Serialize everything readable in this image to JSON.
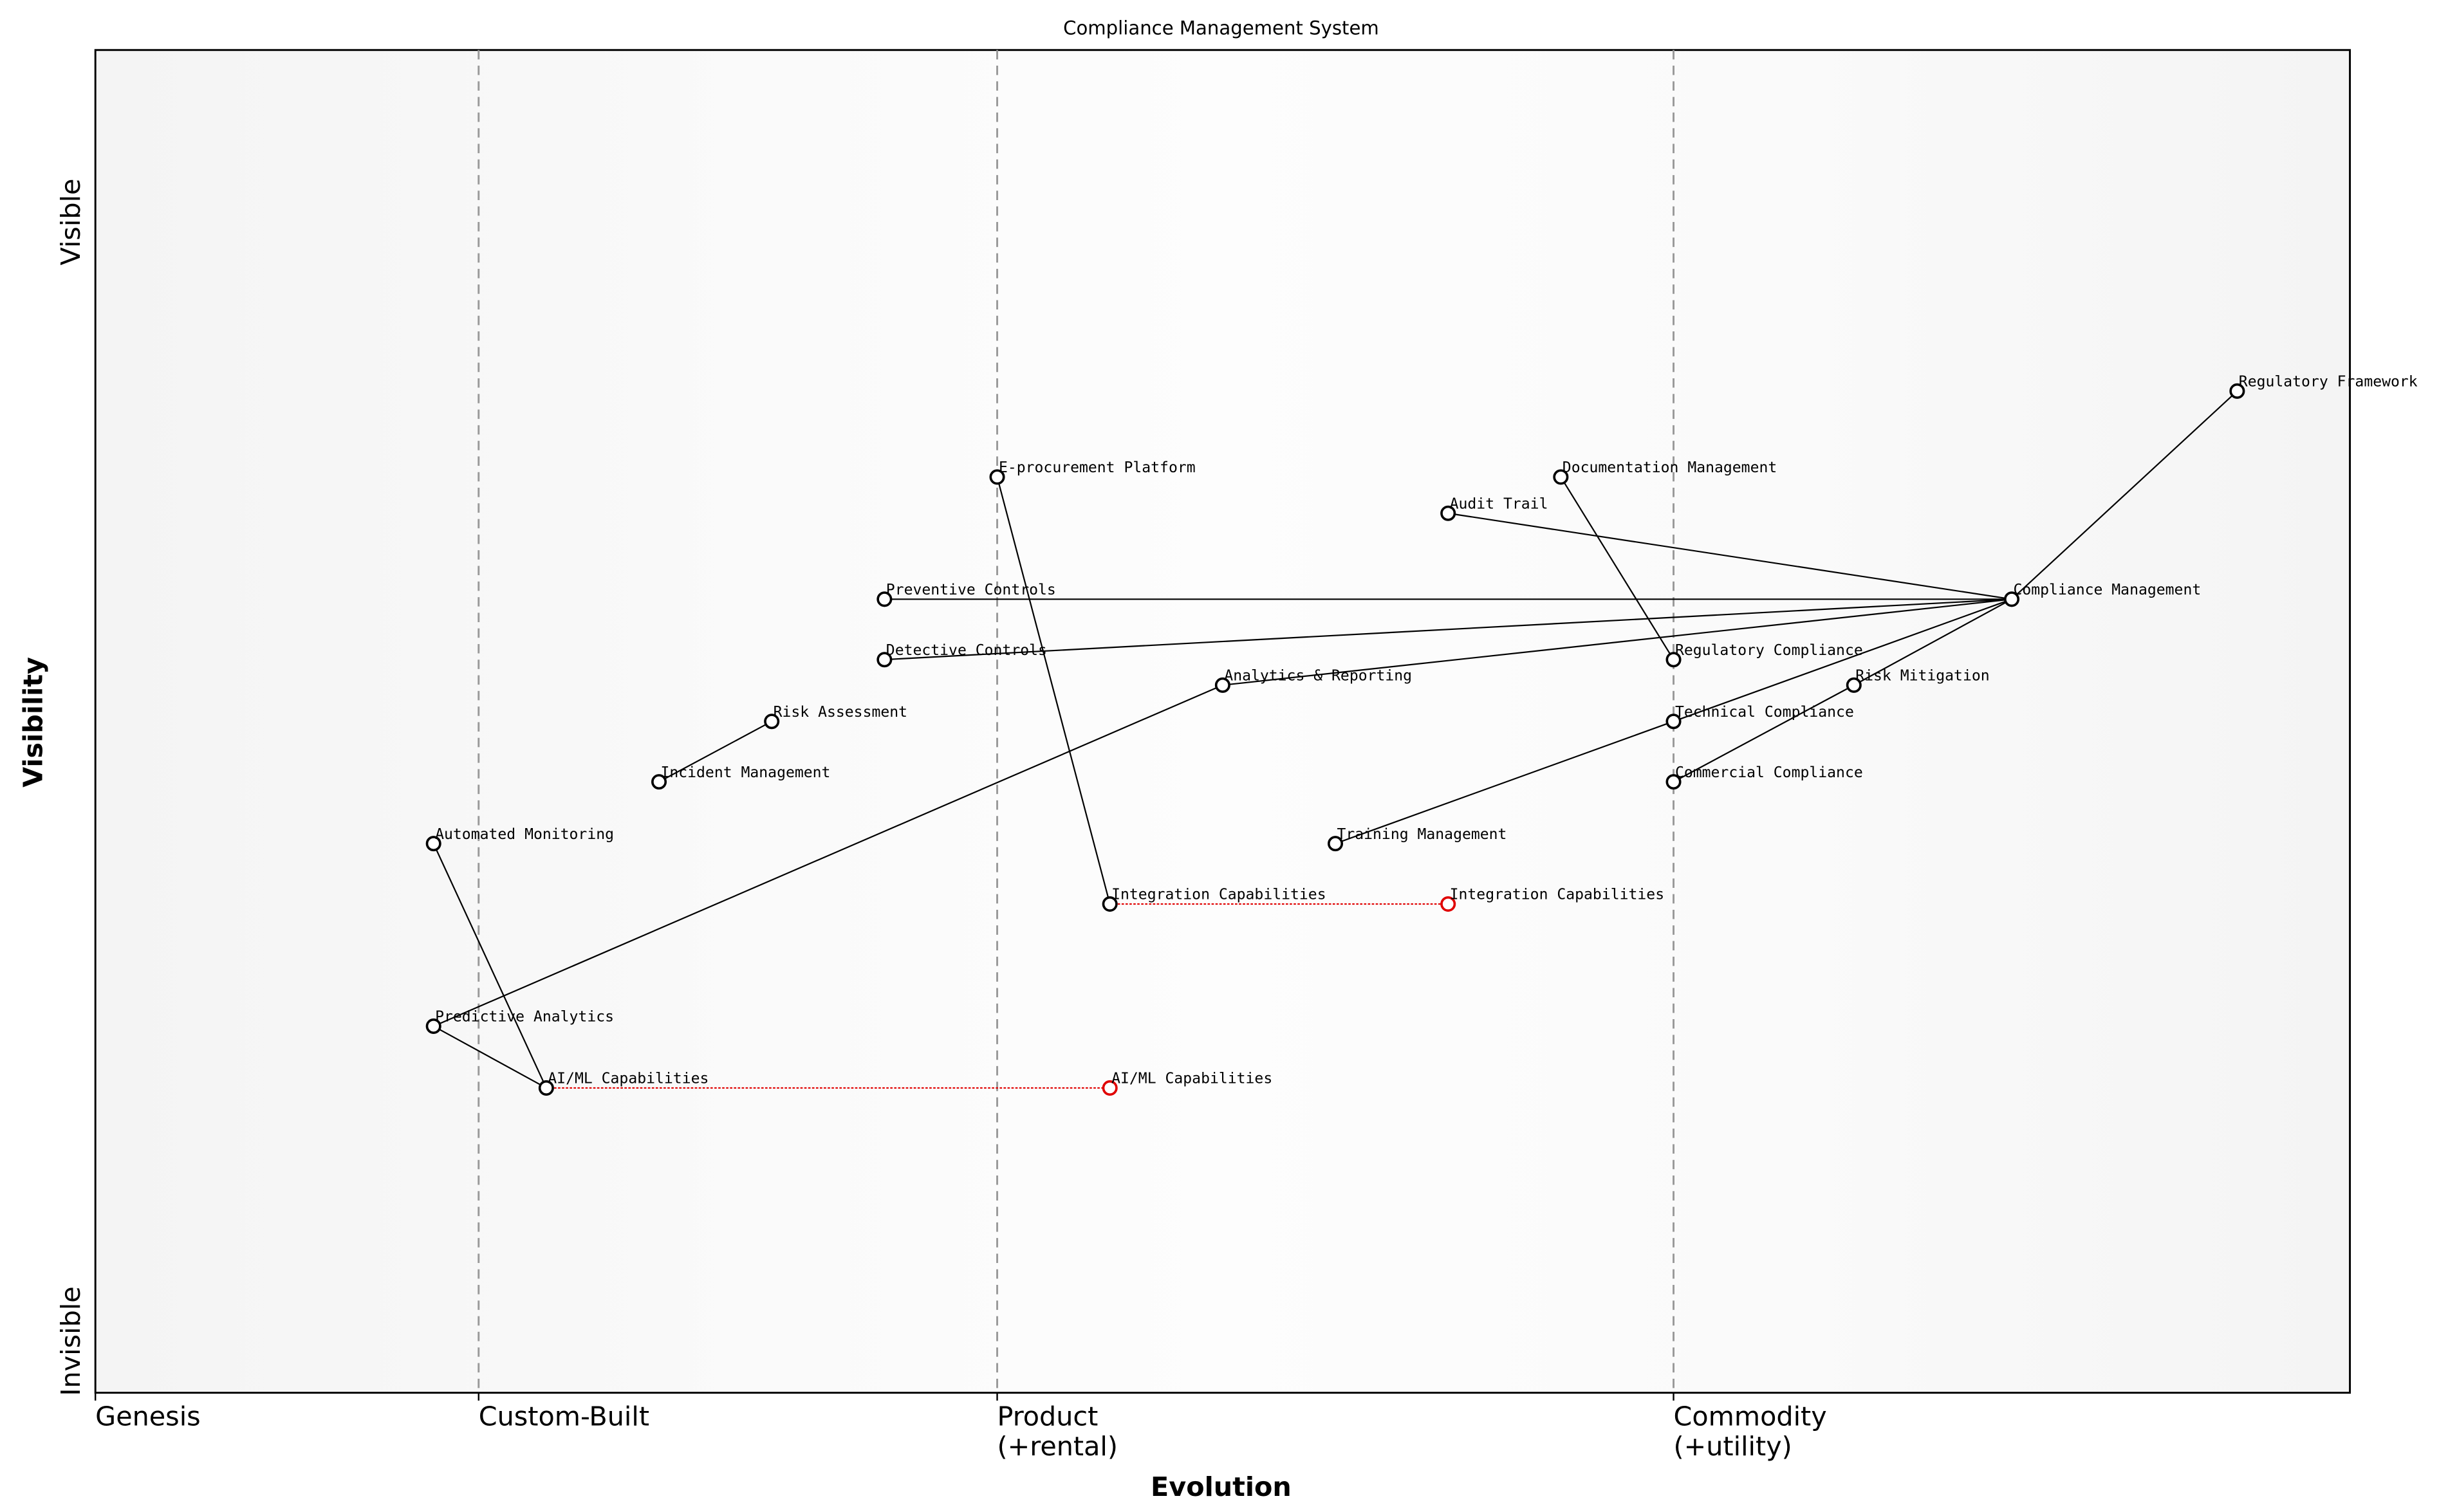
{
  "title": "Compliance Management System",
  "x_axis": {
    "label": "Evolution",
    "stages": [
      {
        "label": [
          "Genesis"
        ],
        "position": 0.0
      },
      {
        "label": [
          "Custom-Built"
        ],
        "position": 0.17
      },
      {
        "label": [
          "Product",
          "(+rental)"
        ],
        "position": 0.4
      },
      {
        "label": [
          "Commodity",
          "(+utility)"
        ],
        "position": 0.7
      }
    ]
  },
  "y_axis": {
    "label": "Visibility",
    "top_label": "Visible",
    "bottom_label": "Invisible"
  },
  "colors": {
    "node": "#000000",
    "evolved_node": "#e00000",
    "link": "#000000",
    "evolution_link": "#e00000",
    "stage_line": "#999999"
  },
  "components": [
    {
      "name": "Regulatory Framework",
      "evolution": 0.95,
      "visibility": 0.746
    },
    {
      "name": "E-procurement Platform",
      "evolution": 0.4,
      "visibility": 0.682
    },
    {
      "name": "Documentation Management",
      "evolution": 0.65,
      "visibility": 0.682
    },
    {
      "name": "Audit Trail",
      "evolution": 0.6,
      "visibility": 0.655
    },
    {
      "name": "Compliance Management",
      "evolution": 0.85,
      "visibility": 0.591
    },
    {
      "name": "Preventive Controls",
      "evolution": 0.35,
      "visibility": 0.591
    },
    {
      "name": "Detective Controls",
      "evolution": 0.35,
      "visibility": 0.546
    },
    {
      "name": "Regulatory Compliance",
      "evolution": 0.7,
      "visibility": 0.546
    },
    {
      "name": "Analytics & Reporting",
      "evolution": 0.5,
      "visibility": 0.527
    },
    {
      "name": "Risk Mitigation",
      "evolution": 0.78,
      "visibility": 0.527
    },
    {
      "name": "Risk Assessment",
      "evolution": 0.3,
      "visibility": 0.5
    },
    {
      "name": "Technical Compliance",
      "evolution": 0.7,
      "visibility": 0.5
    },
    {
      "name": "Incident Management",
      "evolution": 0.25,
      "visibility": 0.455
    },
    {
      "name": "Commercial Compliance",
      "evolution": 0.7,
      "visibility": 0.455
    },
    {
      "name": "Automated Monitoring",
      "evolution": 0.15,
      "visibility": 0.409
    },
    {
      "name": "Training Management",
      "evolution": 0.55,
      "visibility": 0.409
    },
    {
      "name": "Integration Capabilities",
      "evolution": 0.45,
      "visibility": 0.364
    },
    {
      "name": "Predictive Analytics",
      "evolution": 0.15,
      "visibility": 0.273
    },
    {
      "name": "AI/ML Capabilities",
      "evolution": 0.2,
      "visibility": 0.227
    }
  ],
  "links": [
    [
      "Regulatory Framework",
      "Compliance Management"
    ],
    [
      "Compliance Management",
      "Audit Trail"
    ],
    [
      "Compliance Management",
      "Preventive Controls"
    ],
    [
      "Compliance Management",
      "Detective Controls"
    ],
    [
      "Compliance Management",
      "Analytics & Reporting"
    ],
    [
      "Compliance Management",
      "Technical Compliance"
    ],
    [
      "Compliance Management",
      "Risk Mitigation"
    ],
    [
      "Risk Mitigation",
      "Commercial Compliance"
    ],
    [
      "Documentation Management",
      "Regulatory Compliance"
    ],
    [
      "E-procurement Platform",
      "Integration Capabilities"
    ],
    [
      "Risk Assessment",
      "Incident Management"
    ],
    [
      "Training Management",
      "Technical Compliance"
    ],
    [
      "Analytics & Reporting",
      "Predictive Analytics"
    ],
    [
      "Predictive Analytics",
      "AI/ML Capabilities"
    ],
    [
      "Automated Monitoring",
      "AI/ML Capabilities"
    ]
  ],
  "evolutions": [
    {
      "name": "Integration Capabilities",
      "to_evolution": 0.6
    },
    {
      "name": "AI/ML Capabilities",
      "to_evolution": 0.45
    }
  ]
}
